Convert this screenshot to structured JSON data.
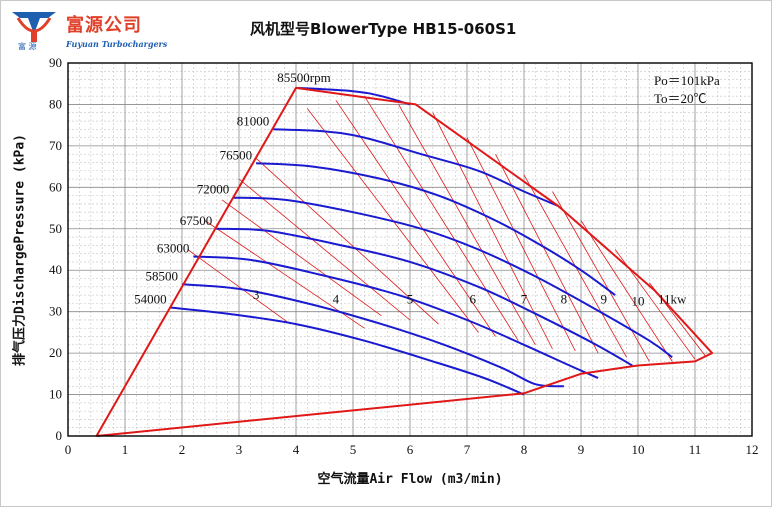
{
  "logo": {
    "company_cn": "富源公司",
    "company_en": "Fuyuan Turbochargers",
    "small_cn": "富 源"
  },
  "chart_data": {
    "type": "line",
    "title": "风机型号BlowerType HB15-060S1",
    "xlabel": "空气流量Air Flow (m3/min)",
    "ylabel": "排气压力DischargePressure (kPa)",
    "xlim": [
      0,
      12
    ],
    "ylim": [
      0,
      90
    ],
    "x_ticks": [
      "0",
      "1",
      "2",
      "3",
      "4",
      "5",
      "6",
      "7",
      "8",
      "9",
      "10",
      "11",
      "12"
    ],
    "y_ticks": [
      "0",
      "10",
      "20",
      "30",
      "40",
      "50",
      "60",
      "70",
      "80",
      "90"
    ],
    "grid": true,
    "conditions": [
      "Po＝101kPa",
      "To＝20℃"
    ],
    "colors": {
      "speed_lines": "#1a1ad0",
      "boundary": "#e01818",
      "power_lines": "#e01818",
      "grid": "#a0a0a0"
    },
    "speed_lines": [
      {
        "label": "85500rpm",
        "points": [
          [
            4.0,
            84
          ],
          [
            5.0,
            83.2
          ],
          [
            5.5,
            82
          ],
          [
            6.0,
            80
          ]
        ]
      },
      {
        "label": "81000",
        "points": [
          [
            3.6,
            74
          ],
          [
            4.5,
            73.5
          ],
          [
            5.2,
            72
          ],
          [
            6.2,
            68
          ],
          [
            7.2,
            64
          ],
          [
            8.0,
            59
          ],
          [
            8.6,
            55.5
          ]
        ]
      },
      {
        "label": "76500",
        "points": [
          [
            3.3,
            65.8
          ],
          [
            4.3,
            65
          ],
          [
            5.5,
            62
          ],
          [
            6.5,
            58
          ],
          [
            7.5,
            52
          ],
          [
            8.3,
            46
          ],
          [
            9.0,
            40
          ],
          [
            9.6,
            34
          ]
        ]
      },
      {
        "label": "72000",
        "points": [
          [
            2.9,
            57.5
          ],
          [
            3.8,
            57
          ],
          [
            5.0,
            54
          ],
          [
            6.2,
            50
          ],
          [
            7.2,
            45
          ],
          [
            8.2,
            38.5
          ],
          [
            9.2,
            31
          ],
          [
            10.2,
            23
          ],
          [
            10.6,
            19
          ]
        ]
      },
      {
        "label": "67500",
        "points": [
          [
            2.6,
            50
          ],
          [
            3.5,
            49.5
          ],
          [
            4.8,
            46
          ],
          [
            6.0,
            42
          ],
          [
            7.2,
            36
          ],
          [
            8.2,
            29.5
          ],
          [
            9.2,
            22.5
          ],
          [
            9.9,
            17
          ]
        ]
      },
      {
        "label": "63000",
        "points": [
          [
            2.2,
            43.3
          ],
          [
            3.2,
            42.5
          ],
          [
            4.4,
            39
          ],
          [
            5.8,
            34
          ],
          [
            7.0,
            28
          ],
          [
            8.0,
            22
          ],
          [
            8.8,
            17
          ],
          [
            9.3,
            14
          ]
        ]
      },
      {
        "label": "58500",
        "points": [
          [
            2.0,
            36.6
          ],
          [
            3.0,
            35.5
          ],
          [
            4.2,
            32
          ],
          [
            5.5,
            27
          ],
          [
            6.6,
            22
          ],
          [
            7.6,
            16.5
          ],
          [
            8.2,
            12.5
          ],
          [
            8.7,
            12
          ]
        ]
      },
      {
        "label": "54000",
        "points": [
          [
            1.8,
            31
          ],
          [
            2.8,
            29.5
          ],
          [
            4.0,
            27
          ],
          [
            5.2,
            23
          ],
          [
            6.4,
            18
          ],
          [
            7.3,
            14
          ],
          [
            8.0,
            10
          ]
        ]
      }
    ],
    "boundary": [
      [
        0.5,
        0
      ],
      [
        4.0,
        84
      ],
      [
        6.1,
        80
      ],
      [
        8.6,
        55.5
      ],
      [
        10.3,
        35
      ],
      [
        11.3,
        20
      ],
      [
        11.0,
        18
      ],
      [
        10.0,
        17
      ],
      [
        9.0,
        15
      ],
      [
        8.0,
        10.3
      ],
      [
        0.5,
        0
      ]
    ],
    "power_lines": [
      {
        "label": "3",
        "points": [
          [
            2.1,
            45
          ],
          [
            3.9,
            27
          ]
        ]
      },
      {
        "label": "4",
        "points": [
          [
            2.7,
            57
          ],
          [
            5.5,
            29
          ]
        ]
      },
      {
        "label": "5",
        "points": [
          [
            3.3,
            67
          ],
          [
            6.5,
            27
          ]
        ]
      },
      {
        "label": "6",
        "points": [
          [
            4.2,
            79
          ],
          [
            7.2,
            25
          ]
        ]
      },
      {
        "label": "7",
        "points": [
          [
            5.2,
            82
          ],
          [
            7.9,
            23
          ]
        ]
      },
      {
        "label": "8",
        "points": [
          [
            6.4,
            78
          ],
          [
            8.5,
            21
          ]
        ]
      },
      {
        "label": "9",
        "points": [
          [
            7.5,
            68
          ],
          [
            9.3,
            20
          ]
        ]
      },
      {
        "label": "10",
        "points": [
          [
            8.5,
            59
          ],
          [
            10.2,
            18
          ]
        ]
      },
      {
        "label": "11kw",
        "points": [
          [
            9.6,
            45
          ],
          [
            11.0,
            18.5
          ]
        ]
      },
      {
        "label": "",
        "points": [
          [
            2.4,
            52
          ],
          [
            5.2,
            26
          ]
        ]
      },
      {
        "label": "",
        "points": [
          [
            3.0,
            62
          ],
          [
            6.0,
            28
          ]
        ]
      },
      {
        "label": "",
        "points": [
          [
            4.7,
            81
          ],
          [
            7.5,
            24
          ]
        ]
      },
      {
        "label": "",
        "points": [
          [
            5.8,
            80
          ],
          [
            8.2,
            22
          ]
        ]
      },
      {
        "label": "",
        "points": [
          [
            7.0,
            72
          ],
          [
            8.9,
            20.5
          ]
        ]
      },
      {
        "label": "",
        "points": [
          [
            8.0,
            63
          ],
          [
            9.8,
            19
          ]
        ]
      },
      {
        "label": "",
        "points": [
          [
            9.0,
            52
          ],
          [
            10.6,
            18
          ]
        ]
      },
      {
        "label": "",
        "points": [
          [
            10.2,
            37
          ],
          [
            11.2,
            19
          ]
        ]
      }
    ],
    "power_label_positions": [
      {
        "label": "3",
        "x": 3.3,
        "y": 33
      },
      {
        "label": "4",
        "x": 4.7,
        "y": 32
      },
      {
        "label": "5",
        "x": 6.0,
        "y": 32
      },
      {
        "label": "6",
        "x": 7.1,
        "y": 32
      },
      {
        "label": "7",
        "x": 8.0,
        "y": 32
      },
      {
        "label": "8",
        "x": 8.7,
        "y": 32
      },
      {
        "label": "9",
        "x": 9.4,
        "y": 32
      },
      {
        "label": "10",
        "x": 10.0,
        "y": 31.5
      },
      {
        "label": "11kw",
        "x": 10.6,
        "y": 32
      }
    ]
  }
}
